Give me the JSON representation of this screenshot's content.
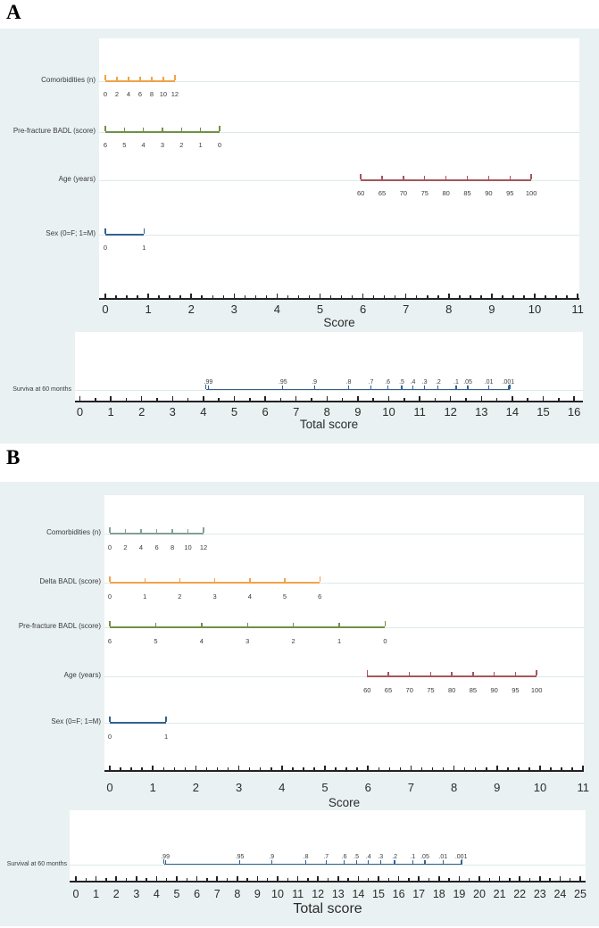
{
  "figure": {
    "background": "#e9f1f2",
    "plot_background": "#ffffff",
    "gridline_color": "#dce9ea",
    "axis_color": "#222222",
    "text_color": "#3a3a3a"
  },
  "chart_data": [
    {
      "type": "nomogram",
      "panel_label": "A",
      "score_axis": {
        "label": "Score",
        "min": 0,
        "max": 11,
        "major_step": 1,
        "minor_step": 0.25,
        "tick_labels": [
          "0",
          "1",
          "2",
          "3",
          "4",
          "5",
          "6",
          "7",
          "8",
          "9",
          "10",
          "11"
        ]
      },
      "predictor_rows": [
        {
          "label": "Comorbidities (n)",
          "color": "#f0a24c",
          "score_range": [
            0,
            1.62
          ],
          "tick_labels": [
            "0",
            "2",
            "4",
            "6",
            "8",
            "10",
            "12"
          ]
        },
        {
          "label": "Pre-fracture BADL (score)",
          "color": "#729048",
          "score_range": [
            0,
            2.66
          ],
          "tick_labels": [
            "6",
            "5",
            "4",
            "3",
            "2",
            "1",
            "0"
          ]
        },
        {
          "label": "Age (years)",
          "color": "#a6555c",
          "score_range": [
            5.95,
            9.92
          ],
          "tick_labels": [
            "60",
            "65",
            "70",
            "75",
            "80",
            "85",
            "90",
            "95",
            "100"
          ]
        },
        {
          "label": "Sex (0=F; 1=M)",
          "color": "#33628f",
          "score_range": [
            0,
            0.9
          ],
          "tick_labels": [
            "0",
            "1"
          ]
        }
      ],
      "total_axis": {
        "label": "Total score",
        "min": 0,
        "max": 16,
        "major_step": 1,
        "minor_step": 0.5,
        "tick_labels": [
          "0",
          "1",
          "2",
          "3",
          "4",
          "5",
          "6",
          "7",
          "8",
          "9",
          "10",
          "11",
          "12",
          "13",
          "14",
          "15",
          "16"
        ]
      },
      "survival_row": {
        "label": "Surviva at 60 months",
        "color": "#33628f",
        "line_range": [
          4.08,
          13.92
        ],
        "ticks": [
          {
            "label": ".99",
            "total_score": 4.16
          },
          {
            "label": ".95",
            "total_score": 6.57
          },
          {
            "label": ".9",
            "total_score": 7.59
          },
          {
            "label": ".8",
            "total_score": 8.7
          },
          {
            "label": ".7",
            "total_score": 9.42
          },
          {
            "label": ".6",
            "total_score": 9.96
          },
          {
            "label": ".5",
            "total_score": 10.42
          },
          {
            "label": ".4",
            "total_score": 10.78
          },
          {
            "label": ".3",
            "total_score": 11.16
          },
          {
            "label": ".2",
            "total_score": 11.6
          },
          {
            "label": ".1",
            "total_score": 12.18
          },
          {
            "label": ".05",
            "total_score": 12.56
          },
          {
            "label": ".01",
            "total_score": 13.24
          },
          {
            "label": ".001",
            "total_score": 13.87
          }
        ]
      }
    },
    {
      "type": "nomogram",
      "panel_label": "B",
      "score_axis": {
        "label": "Score",
        "min": 0,
        "max": 11,
        "major_step": 1,
        "minor_step": 0.25,
        "tick_labels": [
          "0",
          "1",
          "2",
          "3",
          "4",
          "5",
          "6",
          "7",
          "8",
          "9",
          "10",
          "11"
        ]
      },
      "predictor_rows": [
        {
          "label": "Comorbidities (n)",
          "color": "#80a097",
          "score_range": [
            0,
            2.18
          ],
          "tick_labels": [
            "0",
            "2",
            "4",
            "6",
            "8",
            "10",
            "12"
          ]
        },
        {
          "label": "Delta BADL (score)",
          "color": "#f0a24c",
          "score_range": [
            0,
            4.88
          ],
          "tick_labels": [
            "0",
            "1",
            "2",
            "3",
            "4",
            "5",
            "6"
          ]
        },
        {
          "label": "Pre-fracture BADL (score)",
          "color": "#729048",
          "score_range": [
            0,
            6.4
          ],
          "tick_labels": [
            "6",
            "5",
            "4",
            "3",
            "2",
            "1",
            "0"
          ]
        },
        {
          "label": "Age (years)",
          "color": "#a6555c",
          "score_range": [
            5.98,
            9.92
          ],
          "tick_labels": [
            "60",
            "65",
            "70",
            "75",
            "80",
            "85",
            "90",
            "95",
            "100"
          ]
        },
        {
          "label": "Sex (0=F; 1=M)",
          "color": "#33628f",
          "score_range": [
            0,
            1.31
          ],
          "tick_labels": [
            "0",
            "1"
          ]
        }
      ],
      "total_axis": {
        "label": "Total score",
        "min": 0,
        "max": 25,
        "major_step": 1,
        "minor_step": 0.5,
        "tick_labels": [
          "0",
          "1",
          "2",
          "3",
          "4",
          "5",
          "6",
          "7",
          "8",
          "9",
          "10",
          "11",
          "12",
          "13",
          "14",
          "15",
          "16",
          "17",
          "18",
          "19",
          "20",
          "21",
          "22",
          "23",
          "24",
          "25"
        ]
      },
      "survival_row": {
        "label": "Survival at 60 months",
        "color": "#33628f",
        "line_range": [
          4.36,
          19.15
        ],
        "ticks": [
          {
            "label": ".99",
            "total_score": 4.43
          },
          {
            "label": ".95",
            "total_score": 8.12
          },
          {
            "label": ".9",
            "total_score": 9.7
          },
          {
            "label": ".8",
            "total_score": 11.4
          },
          {
            "label": ".7",
            "total_score": 12.4
          },
          {
            "label": ".6",
            "total_score": 13.3
          },
          {
            "label": ".5",
            "total_score": 13.9
          },
          {
            "label": ".4",
            "total_score": 14.5
          },
          {
            "label": ".3",
            "total_score": 15.1
          },
          {
            "label": ".2",
            "total_score": 15.8
          },
          {
            "label": ".1",
            "total_score": 16.7
          },
          {
            "label": ".05",
            "total_score": 17.3
          },
          {
            "label": ".01",
            "total_score": 18.2
          },
          {
            "label": ".001",
            "total_score": 19.1
          }
        ]
      }
    }
  ]
}
